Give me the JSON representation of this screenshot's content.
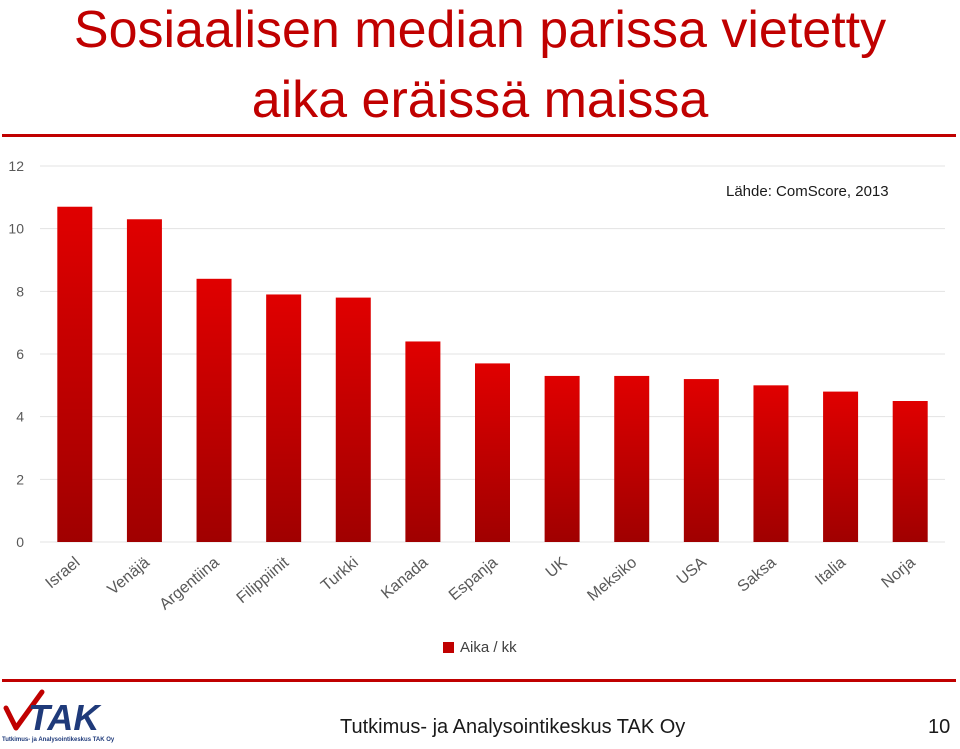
{
  "slide": {
    "title_line1": "Sosiaalisen median parissa vietetty",
    "title_line2": "aika eräissä maissa",
    "source_note": "Lähde: ComScore, 2013",
    "footer": "Tutkimus- ja Analysointikeskus TAK Oy",
    "page_number": "10",
    "logo_text": "TAK",
    "logo_subtext": "Tutkimus- ja Analysointikeskus TAK Oy"
  },
  "colors": {
    "accent": "#c00000",
    "bar_top": "#e00000",
    "bar_bottom": "#a00000",
    "logo_blue": "#1f3a7a"
  },
  "chart_data": {
    "type": "bar",
    "categories": [
      "Israel",
      "Venäjä",
      "Argentiina",
      "Filippiinit",
      "Turkki",
      "Kanada",
      "Espanja",
      "UK",
      "Meksiko",
      "USA",
      "Saksa",
      "Italia",
      "Norja"
    ],
    "series": [
      {
        "name": "Aika / kk",
        "values": [
          10.7,
          10.3,
          8.4,
          7.9,
          7.8,
          6.4,
          5.7,
          5.3,
          5.3,
          5.2,
          5.0,
          4.8,
          4.5
        ]
      }
    ],
    "ylim": [
      0,
      12
    ],
    "yticks": [
      0,
      2,
      4,
      6,
      8,
      10,
      12
    ],
    "grid": true,
    "legend_position": "bottom"
  }
}
